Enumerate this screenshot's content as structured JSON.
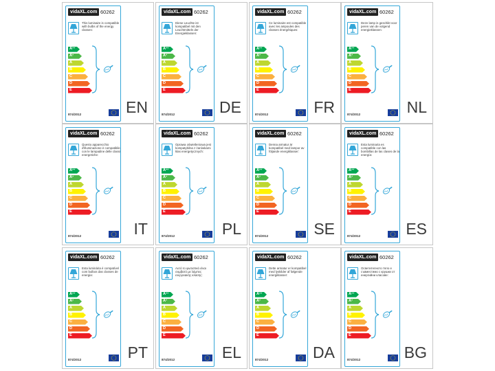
{
  "product": {
    "brand": "vidaXL.com",
    "model": "60262",
    "regulation": "874/2012"
  },
  "energy_classes": [
    {
      "letter": "A",
      "sup": "++",
      "color": "#00a651"
    },
    {
      "letter": "A",
      "sup": "+",
      "color": "#4cb848"
    },
    {
      "letter": "A",
      "sup": "",
      "color": "#bed730"
    },
    {
      "letter": "B",
      "sup": "",
      "color": "#fff200"
    },
    {
      "letter": "C",
      "sup": "",
      "color": "#fbb040"
    },
    {
      "letter": "D",
      "sup": "",
      "color": "#f26522"
    },
    {
      "letter": "E",
      "sup": "",
      "color": "#ed1c24"
    }
  ],
  "icons": {
    "lamp": "table-lamp-icon",
    "bulb": "light-bulb-icon",
    "flag": "eu-flag-icon"
  },
  "colors": {
    "label_border": "#33a6d8",
    "eu_blue": "#173d9b",
    "eu_stars": "#ffdd00"
  },
  "labels": [
    {
      "lang": "EN",
      "text": "This luminaire is compatible with bulbs of the energy classes:"
    },
    {
      "lang": "DE",
      "text": "Diese Leuchte ist kompatibel mit den Leuchtmitteln der Energieklassen:"
    },
    {
      "lang": "FR",
      "text": "Ce luminaire est compatible avec les ampoules des classes énergétiques:"
    },
    {
      "lang": "NL",
      "text": "Deze lamp is geschikt voor peren van de volgend energieklassen:"
    },
    {
      "lang": "IT",
      "text": "Questo apparecchio d'illuminazione è compatibile con le lampadine delle classi energetiche:"
    },
    {
      "lang": "PL",
      "text": "Oprawa oświetleniowa jest kompatybilna z żarówkami klas energetycznych:"
    },
    {
      "lang": "SE",
      "text": "Denna armatur är kompatibel med lampor av följande energiklasser:"
    },
    {
      "lang": "ES",
      "text": "Esta luminaria es compatible con las bombillas de las clases de la energía:"
    },
    {
      "lang": "PT",
      "text": "Esta luminária é compatível com bulbos das classes de energia:"
    },
    {
      "lang": "EL",
      "text": "Αυτό το φωτιστικό είναι συμβατό με λάμπες ενεργειακής κλάσης:"
    },
    {
      "lang": "DA",
      "text": "Dette armatur er kompatibel med lyskilder af følgende energiklasser:"
    },
    {
      "lang": "BG",
      "text": "Осветителното тяло е съвместимо с крушки от енергийни класове:"
    }
  ]
}
